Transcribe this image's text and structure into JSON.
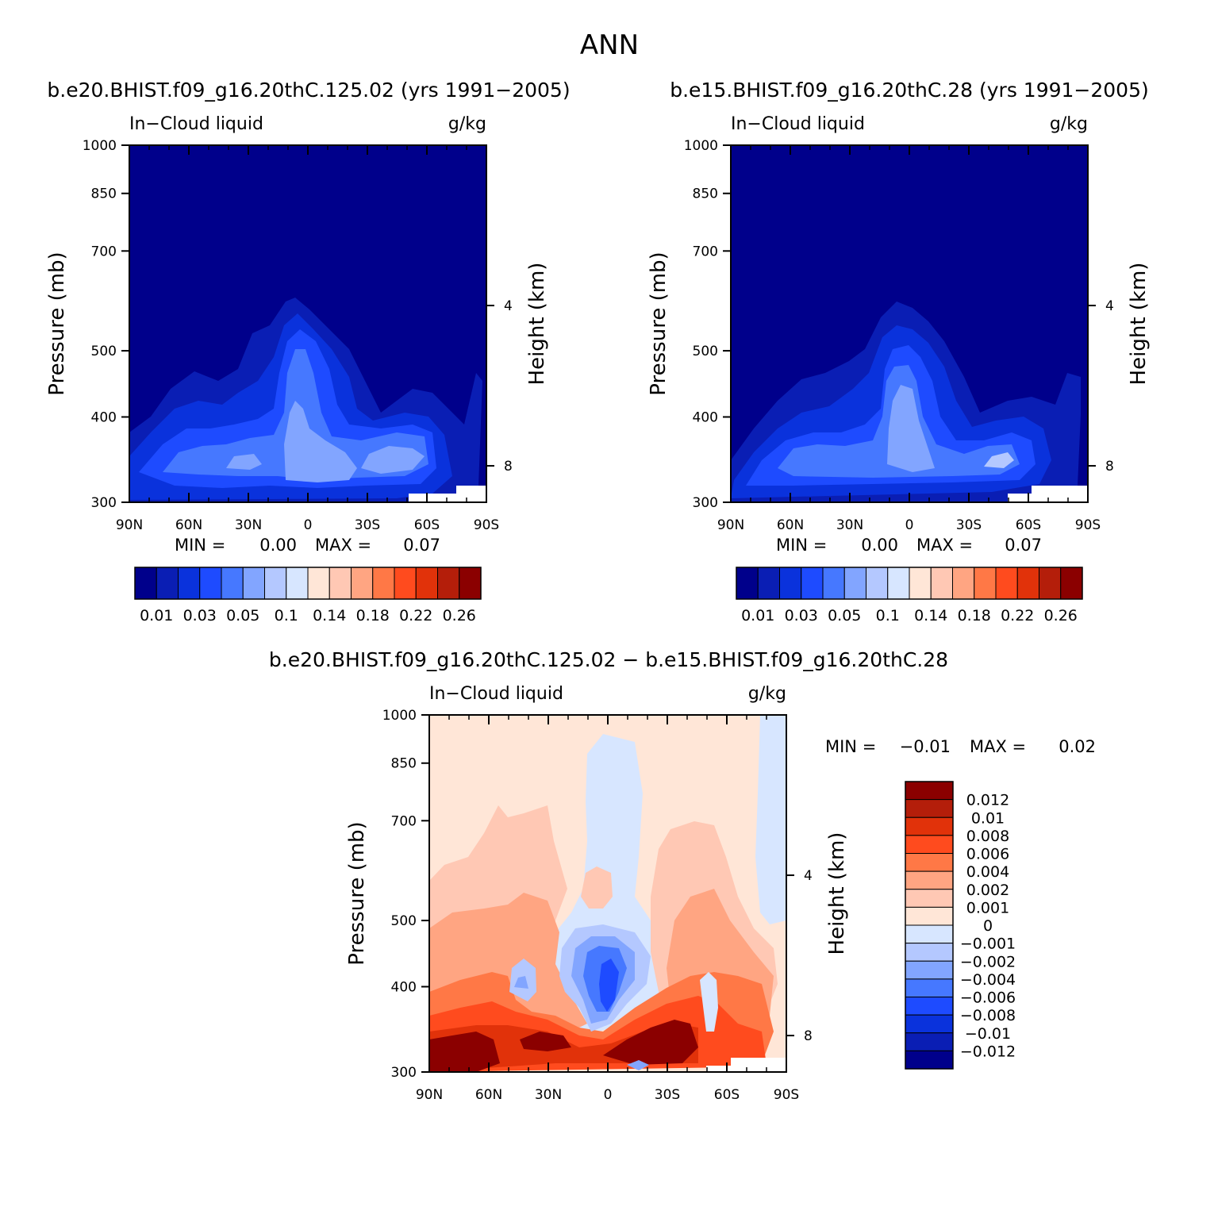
{
  "page": {
    "title": "ANN"
  },
  "chart_data": [
    {
      "type": "contour",
      "panel": "top-left",
      "title": "b.e20.BHIST.f09_g16.20thC.125.02 (yrs 1991−2005)",
      "left_label": "In−Cloud liquid",
      "right_label": "g/kg",
      "ylabel": "Pressure (mb)",
      "ylabel_right": "Height (km)",
      "x_ticks": [
        "90N",
        "60N",
        "30N",
        "0",
        "30S",
        "60S",
        "90S"
      ],
      "y_ticks": [
        "300",
        "400",
        "500",
        "700",
        "850",
        "1000"
      ],
      "y_right_ticks": [
        "8",
        "4"
      ],
      "ylim": [
        1000,
        300
      ],
      "stats": {
        "min_label": "MIN =",
        "min_value": "0.00",
        "max_label": "MAX =",
        "max_value": "0.07"
      },
      "legend_labels": [
        "0.01",
        "0.03",
        "0.05",
        "0.1",
        "0.14",
        "0.18",
        "0.22",
        "0.26"
      ],
      "legend_colors": [
        "#00008b",
        "#0a1eb4",
        "#0a32dc",
        "#1e4bff",
        "#4678ff",
        "#82a5ff",
        "#b4c8ff",
        "#d7e6ff",
        "#ffe6d7",
        "#ffc8b4",
        "#ffa582",
        "#ff7846",
        "#ff4b1e",
        "#e1320a",
        "#b41e0a",
        "#8b0000"
      ]
    },
    {
      "type": "contour",
      "panel": "top-right",
      "title": "b.e15.BHIST.f09_g16.20thC.28 (yrs 1991−2005)",
      "left_label": "In−Cloud liquid",
      "right_label": "g/kg",
      "ylabel": "Pressure (mb)",
      "ylabel_right": "Height (km)",
      "x_ticks": [
        "90N",
        "60N",
        "30N",
        "0",
        "30S",
        "60S",
        "90S"
      ],
      "y_ticks": [
        "300",
        "400",
        "500",
        "700",
        "850",
        "1000"
      ],
      "y_right_ticks": [
        "8",
        "4"
      ],
      "ylim": [
        1000,
        300
      ],
      "stats": {
        "min_label": "MIN =",
        "min_value": "0.00",
        "max_label": "MAX =",
        "max_value": "0.07"
      },
      "legend_labels": [
        "0.01",
        "0.03",
        "0.05",
        "0.1",
        "0.14",
        "0.18",
        "0.22",
        "0.26"
      ],
      "legend_colors": [
        "#00008b",
        "#0a1eb4",
        "#0a32dc",
        "#1e4bff",
        "#4678ff",
        "#82a5ff",
        "#b4c8ff",
        "#d7e6ff",
        "#ffe6d7",
        "#ffc8b4",
        "#ffa582",
        "#ff7846",
        "#ff4b1e",
        "#e1320a",
        "#b41e0a",
        "#8b0000"
      ]
    },
    {
      "type": "contour",
      "panel": "bottom-difference",
      "title": "b.e20.BHIST.f09_g16.20thC.125.02 − b.e15.BHIST.f09_g16.20thC.28",
      "left_label": "In−Cloud liquid",
      "right_label": "g/kg",
      "ylabel": "Pressure (mb)",
      "ylabel_right": "Height (km)",
      "x_ticks": [
        "90N",
        "60N",
        "30N",
        "0",
        "30S",
        "60S",
        "90S"
      ],
      "y_ticks": [
        "300",
        "400",
        "500",
        "700",
        "850",
        "1000"
      ],
      "y_right_ticks": [
        "8",
        "4"
      ],
      "ylim": [
        1000,
        300
      ],
      "stats": {
        "min_label": "MIN =",
        "min_value": "−0.01",
        "max_label": "MAX =",
        "max_value": "0.02"
      },
      "legend_labels": [
        "0.012",
        "0.01",
        "0.008",
        "0.006",
        "0.004",
        "0.002",
        "0.001",
        "0",
        "−0.001",
        "−0.002",
        "−0.004",
        "−0.006",
        "−0.008",
        "−0.01",
        "−0.012"
      ],
      "legend_colors": [
        "#8b0000",
        "#b41e0a",
        "#e1320a",
        "#ff4b1e",
        "#ff7846",
        "#ffa582",
        "#ffc8b4",
        "#ffe6d7",
        "#d7e6ff",
        "#b4c8ff",
        "#82a5ff",
        "#4678ff",
        "#1e4bff",
        "#0a32dc",
        "#0a1eb4",
        "#00008b"
      ]
    }
  ]
}
